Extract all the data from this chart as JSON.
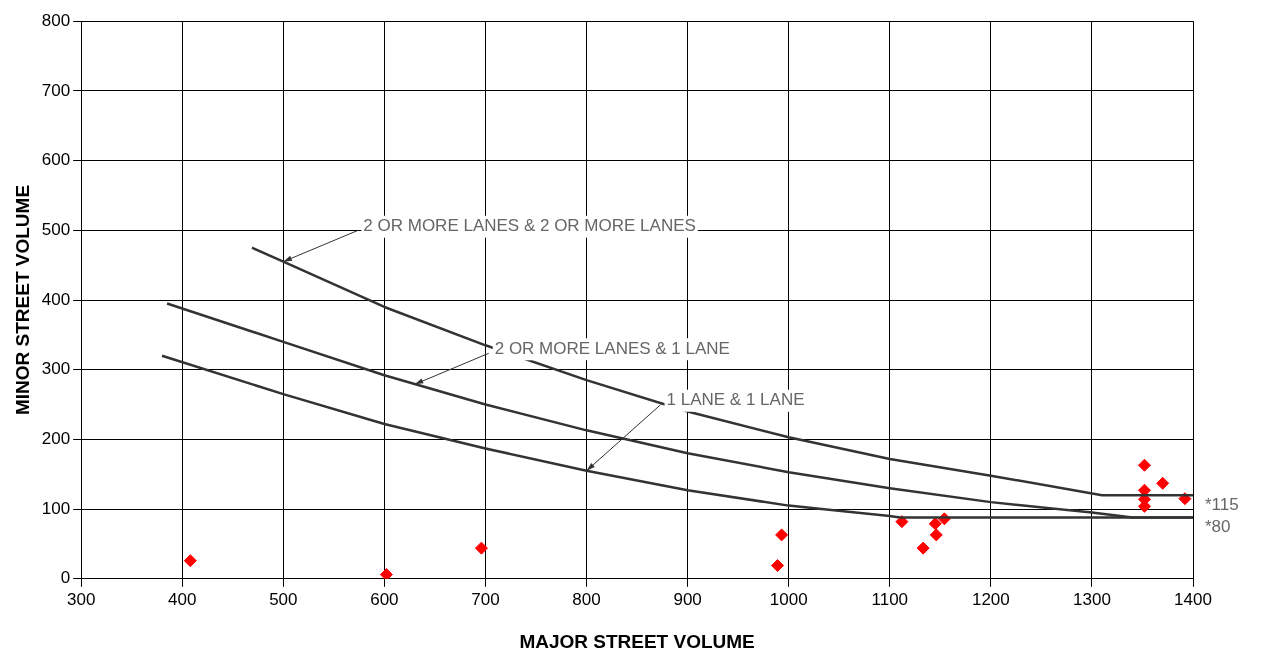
{
  "chart_data": {
    "type": "scatter",
    "xlabel": "MAJOR STREET VOLUME",
    "ylabel": "MINOR STREET VOLUME",
    "xlim": [
      300,
      1400
    ],
    "xticks": [
      300,
      400,
      500,
      600,
      700,
      800,
      900,
      1000,
      1100,
      1200,
      1300,
      1400
    ],
    "ylim": [
      0,
      800
    ],
    "yticks": [
      0,
      100,
      200,
      300,
      400,
      500,
      600,
      700,
      800
    ],
    "grid": true,
    "legend": false,
    "series": [
      {
        "type": "line",
        "color": "#333333",
        "marker": "none",
        "x": [
          469,
          500,
          600,
          700,
          800,
          900,
          1000,
          1100,
          1200,
          1310,
          1400
        ],
        "values": [
          475,
          455,
          390,
          335,
          285,
          240,
          203,
          172,
          148,
          120,
          120
        ]
      },
      {
        "type": "line",
        "color": "#333333",
        "marker": "none",
        "x": [
          385,
          500,
          600,
          700,
          800,
          900,
          1000,
          1100,
          1200,
          1300,
          1340,
          1400
        ],
        "values": [
          395,
          340,
          292,
          250,
          213,
          180,
          153,
          130,
          110,
          95,
          88,
          88
        ]
      },
      {
        "type": "line",
        "color": "#333333",
        "marker": "none",
        "x": [
          380,
          500,
          600,
          700,
          800,
          900,
          1000,
          1100,
          1110,
          1400
        ],
        "values": [
          320,
          265,
          222,
          187,
          155,
          127,
          105,
          90,
          88,
          88
        ]
      },
      {
        "color": "#ff0000",
        "marker": "diamond",
        "x": [
          408,
          602,
          696,
          989,
          993,
          1112,
          1133,
          1146,
          1145,
          1154,
          1352,
          1352,
          1352,
          1352,
          1370,
          1392
        ],
        "values": [
          26,
          6,
          44,
          19,
          63,
          82,
          44,
          63,
          79,
          86,
          163,
          127,
          114,
          104,
          137,
          115
        ]
      }
    ],
    "annotations": [
      {
        "text": "2 OR MORE LANES & 2 OR MORE LANES",
        "x": 500,
        "y": 455
      },
      {
        "text": "2 OR MORE LANES & 1 LANE",
        "x": 630,
        "y": 279
      },
      {
        "text": "1 LANE & 1 LANE",
        "x": 800,
        "y": 155
      },
      {
        "text": "*115",
        "x": 1400,
        "y": 120
      },
      {
        "text": "*80",
        "x": 1400,
        "y": 88
      }
    ]
  }
}
